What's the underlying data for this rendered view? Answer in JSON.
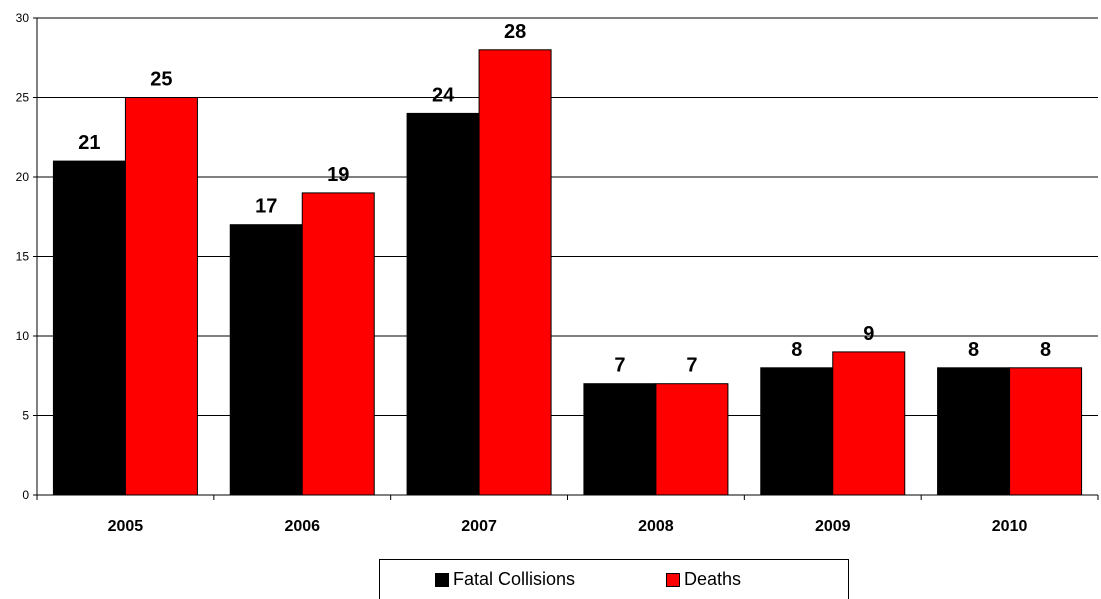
{
  "chart_data": {
    "type": "bar",
    "categories": [
      "2005",
      "2006",
      "2007",
      "2008",
      "2009",
      "2010"
    ],
    "series": [
      {
        "name": "Fatal Collisions",
        "color": "#000000",
        "values": [
          21,
          17,
          24,
          7,
          8,
          8
        ]
      },
      {
        "name": "Deaths",
        "color": "#ff0000",
        "values": [
          25,
          19,
          28,
          7,
          9,
          8
        ]
      }
    ],
    "ylim": [
      0,
      30
    ],
    "yticks": [
      0,
      5,
      10,
      15,
      20,
      25,
      30
    ],
    "grid": true,
    "legend_position": "bottom"
  }
}
